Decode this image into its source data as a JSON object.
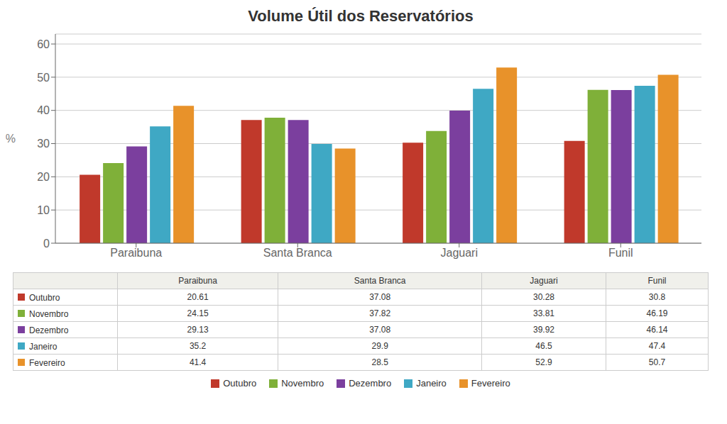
{
  "chart_data": {
    "type": "bar",
    "title": "Volume Útil dos Reservatórios",
    "categories": [
      "Paraibuna",
      "Santa Branca",
      "Jaguari",
      "Funil"
    ],
    "series": [
      {
        "name": "Outubro",
        "color": "#c0392b",
        "values": [
          20.61,
          37.08,
          30.28,
          30.8
        ]
      },
      {
        "name": "Novembro",
        "color": "#7fb039",
        "values": [
          24.15,
          37.82,
          33.81,
          46.19
        ]
      },
      {
        "name": "Dezembro",
        "color": "#7b3f9e",
        "values": [
          29.13,
          37.08,
          39.92,
          46.14
        ]
      },
      {
        "name": "Janeiro",
        "color": "#3fa8c4",
        "values": [
          35.2,
          29.9,
          46.5,
          47.4
        ]
      },
      {
        "name": "Fevereiro",
        "color": "#e8922a",
        "values": [
          41.4,
          28.5,
          52.9,
          50.7
        ]
      }
    ],
    "ylabel": "%",
    "ylim": [
      0,
      63
    ],
    "yticks": [
      0,
      10,
      20,
      30,
      40,
      50,
      60
    ],
    "grid": true,
    "legend": "bottom"
  }
}
